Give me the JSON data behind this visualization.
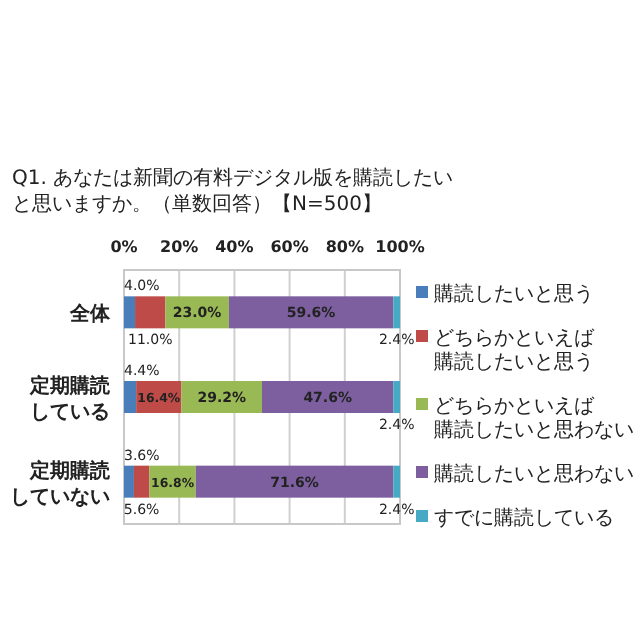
{
  "chart_data": {
    "type": "bar",
    "title": "Q1. あなたは新聞の有料デジタル版を購読したいと思いますか。（単数回答）【N=500】",
    "orientation": "horizontal",
    "stacked": true,
    "grid": "x",
    "legend": "right",
    "categories": [
      "全体",
      "定期購読している",
      "定期購読していない"
    ],
    "xlim": [
      0,
      100
    ],
    "xticks": [
      {
        "value": 0,
        "label": "0%"
      },
      {
        "value": 20,
        "label": "20%"
      },
      {
        "value": 40,
        "label": "40%"
      },
      {
        "value": 60,
        "label": "60%"
      },
      {
        "value": 80,
        "label": "80%"
      },
      {
        "value": 100,
        "label": "100%"
      }
    ],
    "series": [
      {
        "name": "購読したいと思う",
        "color": "#4a7ebb",
        "values": [
          4.0,
          4.4,
          3.6
        ],
        "value_labels": [
          "4.0%",
          "4.4%",
          "3.6%"
        ]
      },
      {
        "name": "どちらかといえば購読したいと思う",
        "color": "#be4b48",
        "values": [
          11.0,
          16.4,
          5.6
        ],
        "value_labels": [
          "11.0%",
          "16.4%",
          "5.6%"
        ]
      },
      {
        "name": "どちらかといえば購読したいと思わない",
        "color": "#98b954",
        "values": [
          23.0,
          29.2,
          16.8
        ],
        "value_labels": [
          "23.0%",
          "29.2%",
          "16.8%"
        ]
      },
      {
        "name": "購読したいと思わない",
        "color": "#7d5fa0",
        "values": [
          59.6,
          47.6,
          71.6
        ],
        "value_labels": [
          "59.6%",
          "47.6%",
          "71.6%"
        ]
      },
      {
        "name": "すでに購読している",
        "color": "#46aac5",
        "values": [
          2.4,
          2.4,
          2.4
        ],
        "value_labels": [
          "2.4%",
          "2.4%",
          "2.4%"
        ]
      }
    ]
  }
}
